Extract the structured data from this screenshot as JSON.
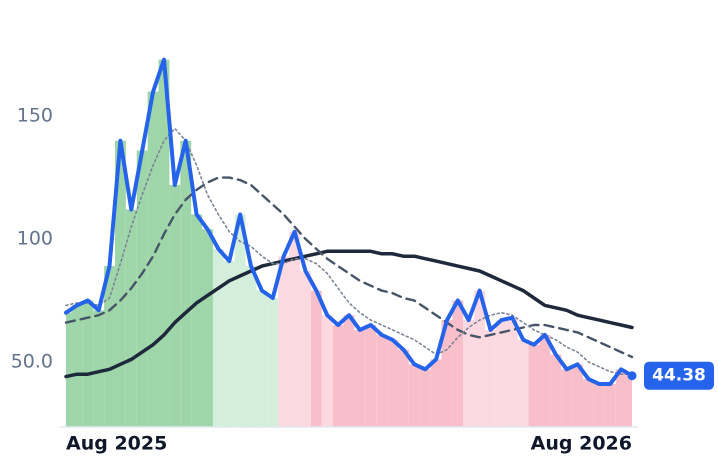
{
  "chart_data": {
    "type": "line",
    "categories": [
      "Aug 2025",
      null,
      null,
      null,
      null,
      null,
      null,
      null,
      null,
      null,
      null,
      null,
      null,
      null,
      null,
      null,
      null,
      null,
      null,
      null,
      null,
      null,
      null,
      null,
      null,
      null,
      null,
      null,
      null,
      null,
      null,
      null,
      null,
      null,
      null,
      null,
      null,
      null,
      null,
      null,
      null,
      null,
      null,
      null,
      null,
      null,
      null,
      null,
      null,
      null,
      null,
      null,
      "Aug 2026"
    ],
    "series": [
      {
        "color": "#2563eb",
        "values": [
          70,
          73,
          75,
          71,
          89,
          140,
          112,
          136,
          160,
          173,
          122,
          140,
          110,
          104,
          96,
          91,
          110,
          89,
          79,
          76,
          93,
          103,
          87,
          79,
          69,
          65,
          69,
          63,
          65,
          61,
          59,
          55,
          49,
          47,
          51,
          67,
          75,
          67,
          79,
          63,
          67,
          68,
          59,
          57,
          61,
          53,
          47,
          49,
          43,
          41,
          41,
          47,
          44.38
        ]
      },
      {
        "color": "#7c8595",
        "values": [
          73,
          74,
          74,
          73,
          76,
          90,
          105,
          118,
          130,
          140,
          145,
          140,
          130,
          118,
          110,
          103,
          99,
          97,
          93,
          90,
          90,
          92,
          92,
          90,
          86,
          80,
          74,
          70,
          67,
          65,
          63,
          61,
          59,
          56,
          53,
          55,
          60,
          64,
          67,
          69,
          70,
          69,
          66,
          63,
          61,
          59,
          56,
          54,
          50,
          48,
          46,
          45,
          45
        ]
      },
      {
        "color": "#475569",
        "values": [
          66,
          67,
          68,
          69,
          71,
          75,
          80,
          86,
          93,
          102,
          110,
          116,
          120,
          123,
          125,
          125,
          124,
          122,
          118,
          114,
          110,
          105,
          100,
          96,
          92,
          89,
          86,
          83,
          81,
          79,
          78,
          76,
          75,
          72,
          69,
          66,
          63,
          61,
          60,
          61,
          62,
          63,
          64,
          65,
          65,
          64,
          63,
          62,
          60,
          58,
          56,
          54,
          52
        ]
      },
      {
        "color": "#1e293b",
        "values": [
          44,
          45,
          45,
          46,
          47,
          49,
          51,
          54,
          57,
          61,
          66,
          70,
          74,
          77,
          80,
          83,
          85,
          87,
          89,
          90,
          91,
          92,
          93,
          94,
          95,
          95,
          95,
          95,
          95,
          94,
          94,
          93,
          93,
          92,
          91,
          90,
          89,
          88,
          87,
          85,
          83,
          81,
          79,
          76,
          73,
          72,
          71,
          69,
          68,
          67,
          66,
          65,
          64
        ]
      }
    ],
    "fill_colors": [
      "#9ed6a9",
      "#9ed6a9",
      "#9ed6a9",
      "#9ed6a9",
      "#9ed6a9",
      "#9ed6a9",
      "#9ed6a9",
      "#9ed6a9",
      "#9ed6a9",
      "#9ed6a9",
      "#9ed6a9",
      "#9ed6a9",
      "#9ed6a9",
      "#9ed6a9",
      "#d3eedb",
      "#d3eedb",
      "#d3eedb",
      "#d3eedb",
      "#d3eedb",
      "#d3eedb",
      "#fcd9e0",
      "#fcd9e0",
      "#fcd9e0",
      "#f8bfcb",
      "#fcd9e0",
      "#f8bfcb",
      "#f8bfcb",
      "#f8bfcb",
      "#f8bfcb",
      "#f8bfcb",
      "#f8bfcb",
      "#f8bfcb",
      "#f8bfcb",
      "#f8bfcb",
      "#f8bfcb",
      "#f8bfcb",
      "#f8bfcb",
      "#fcd9e0",
      "#fcd9e0",
      "#fcd9e0",
      "#fcd9e0",
      "#fcd9e0",
      "#fcd9e0",
      "#f8bfcb",
      "#f8bfcb",
      "#f8bfcb",
      "#f8bfcb",
      "#f8bfcb",
      "#f8bfcb",
      "#f8bfcb",
      "#f8bfcb",
      "#f8bfcb",
      "#f8bfcb"
    ],
    "ylim": [
      23.5,
      181
    ],
    "yticks": [
      {
        "value": 50,
        "label": "50.0"
      },
      100,
      150
    ]
  }
}
